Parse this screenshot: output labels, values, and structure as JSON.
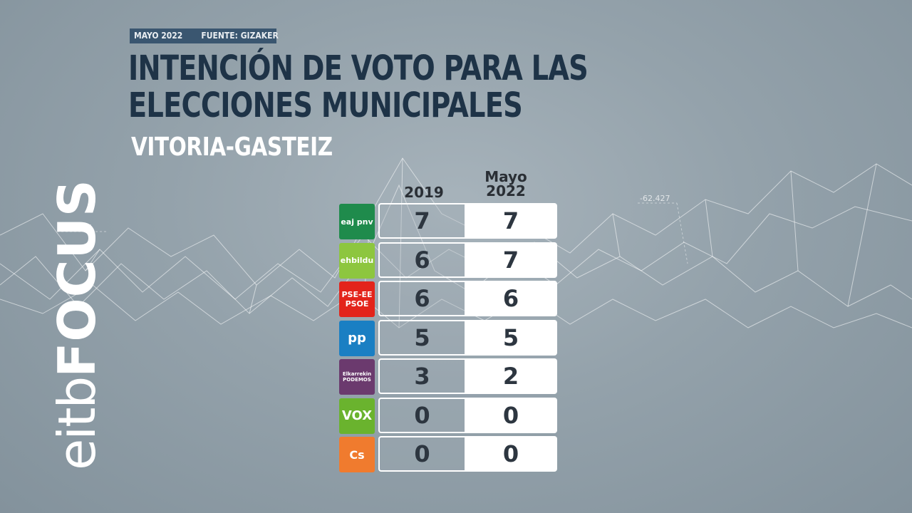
{
  "meta": {
    "date": "MAYO 2022",
    "source": "FUENTE: GIZAKER"
  },
  "title": "INTENCIÓN DE VOTO PARA LAS ELECCIONES MUNICIPALES",
  "subtitle": "VITORIA-GASTEIZ",
  "brand": {
    "part1": "eitb",
    "part2": "FOCUS"
  },
  "background_numbers": [
    "-62.427",
    "-62.427"
  ],
  "chart_data": {
    "type": "table",
    "columns": [
      "2019",
      "Mayo 2022"
    ],
    "rows": [
      {
        "party": "eaj-pnv",
        "logo_text": "eaj pnv",
        "color": "#1f8b4c",
        "values": [
          7,
          7
        ]
      },
      {
        "party": "ehbildu",
        "logo_text": "ehbildu",
        "color": "#8dc63f",
        "values": [
          6,
          7
        ]
      },
      {
        "party": "PSE-EE PSOE",
        "logo_text": "PSE-EE PSOE",
        "color": "#e3241b",
        "values": [
          6,
          6
        ]
      },
      {
        "party": "PP",
        "logo_text": "pp",
        "color": "#1a7fc3",
        "values": [
          5,
          5
        ]
      },
      {
        "party": "Elkarrekin Podemos",
        "logo_text": "Elkarrekin PODEMOS",
        "color": "#6b3a6e",
        "values": [
          3,
          2
        ]
      },
      {
        "party": "VOX",
        "logo_text": "VOX",
        "color": "#6ab32e",
        "values": [
          0,
          0
        ]
      },
      {
        "party": "Cs",
        "logo_text": "Cs",
        "color": "#f07b2e",
        "values": [
          0,
          0
        ]
      }
    ]
  }
}
